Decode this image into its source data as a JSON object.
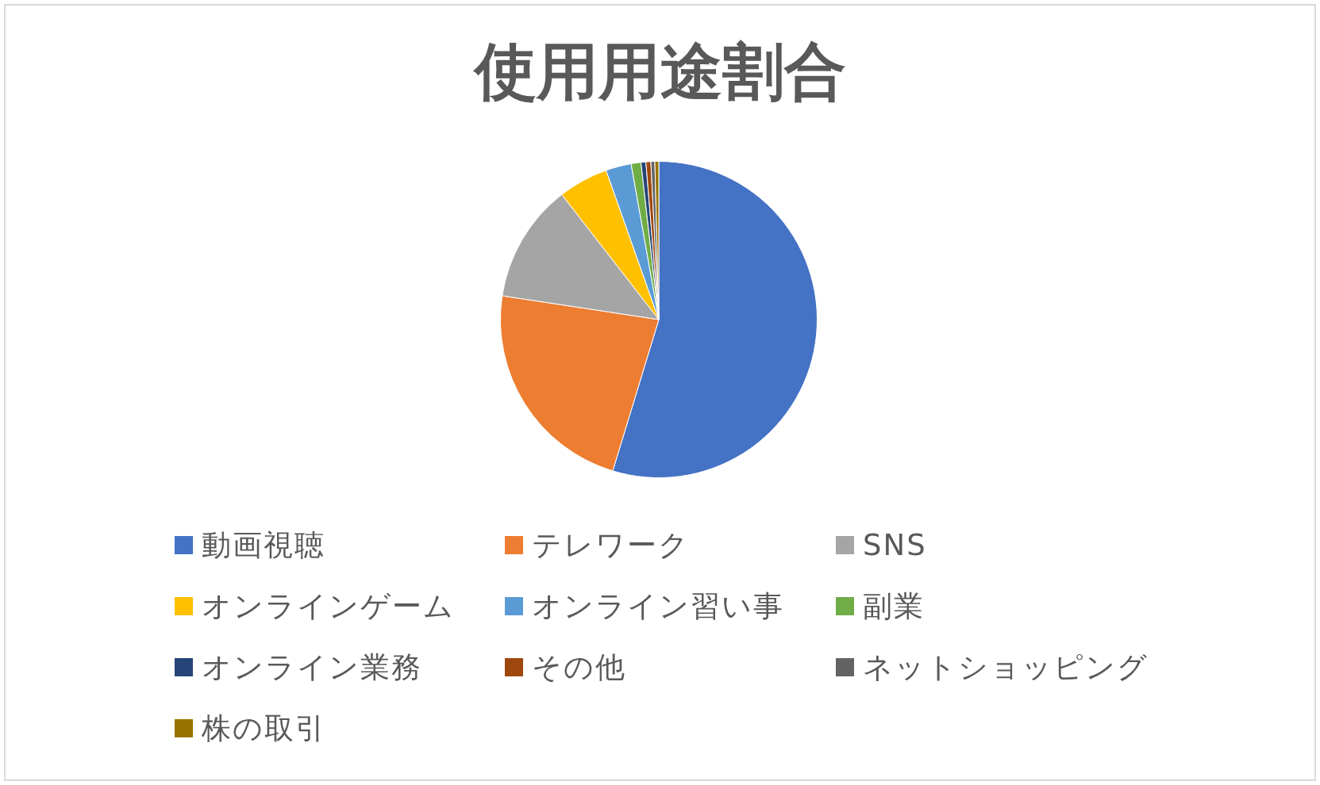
{
  "chart_data": {
    "type": "pie",
    "title": "使用用途割合",
    "categories": [
      "動画視聴",
      "テレワーク",
      "SNS",
      "オンラインゲーム",
      "オンライン習い事",
      "副業",
      "オンライン業務",
      "その他",
      "ネットショッピング",
      "株の取引"
    ],
    "values": [
      54.7,
      22.7,
      12.1,
      5.1,
      2.6,
      1.0,
      0.5,
      0.5,
      0.4,
      0.4
    ],
    "colors": [
      "#4472c4",
      "#ed7d31",
      "#a5a5a5",
      "#ffc000",
      "#5b9bd5",
      "#70ad47",
      "#264478",
      "#9e480e",
      "#636363",
      "#997300"
    ],
    "legend": "bottom"
  }
}
